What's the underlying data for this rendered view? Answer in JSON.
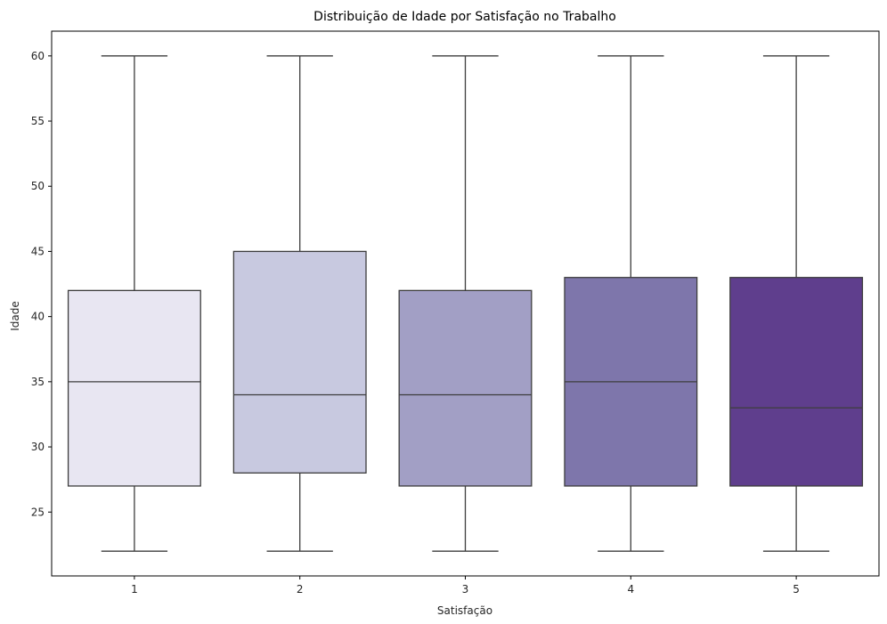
{
  "chart_data": {
    "type": "box",
    "title": "Distribuição de Idade por Satisfação no Trabalho",
    "xlabel": "Satisfação",
    "ylabel": "Idade",
    "categories": [
      "1",
      "2",
      "3",
      "4",
      "5"
    ],
    "ylim": [
      20.1,
      61.9
    ],
    "yticks": [
      25,
      30,
      35,
      40,
      45,
      50,
      55,
      60
    ],
    "boxes": [
      {
        "category": "1",
        "min": 22,
        "q1": 27,
        "median": 35,
        "q3": 42,
        "max": 60,
        "color": "#e8e6f2"
      },
      {
        "category": "2",
        "min": 22,
        "q1": 28,
        "median": 34,
        "q3": 45,
        "max": 60,
        "color": "#c8c9e0"
      },
      {
        "category": "3",
        "min": 22,
        "q1": 27,
        "median": 34,
        "q3": 42,
        "max": 60,
        "color": "#a29fc5"
      },
      {
        "category": "4",
        "min": 22,
        "q1": 27,
        "median": 35,
        "q3": 43,
        "max": 60,
        "color": "#7e76ab"
      },
      {
        "category": "5",
        "min": 22,
        "q1": 27,
        "median": 33,
        "q3": 43,
        "max": 60,
        "color": "#5f3e8d"
      }
    ],
    "line_color": "#3d3d3d",
    "grid": false,
    "legend": "none"
  }
}
